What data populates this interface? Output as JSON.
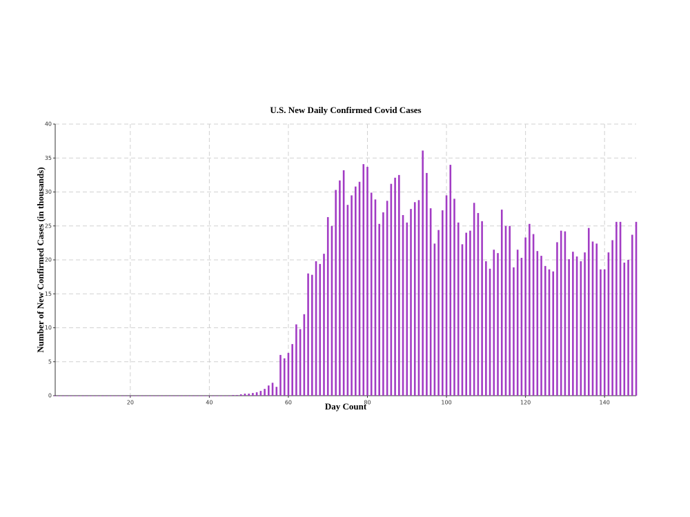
{
  "chart_data": {
    "type": "bar",
    "title": "U.S. New Daily Confirmed Covid Cases",
    "x_label": "Day Count",
    "y_label": "Number of New Confirmed Cases (in thousands)",
    "x": [
      1,
      2,
      3,
      4,
      5,
      6,
      7,
      8,
      9,
      10,
      11,
      12,
      13,
      14,
      15,
      16,
      17,
      18,
      19,
      20,
      21,
      22,
      23,
      24,
      25,
      26,
      27,
      28,
      29,
      30,
      31,
      32,
      33,
      34,
      35,
      36,
      37,
      38,
      39,
      40,
      41,
      42,
      43,
      44,
      45,
      46,
      47,
      48,
      49,
      50,
      51,
      52,
      53,
      54,
      55,
      56,
      57,
      58,
      59,
      60,
      61,
      62,
      63,
      64,
      65,
      66,
      67,
      68,
      69,
      70,
      71,
      72,
      73,
      74,
      75,
      76,
      77,
      78,
      79,
      80,
      81,
      82,
      83,
      84,
      85,
      86,
      87,
      88,
      89,
      90,
      91,
      92,
      93,
      94,
      95,
      96,
      97,
      98,
      99,
      100,
      101,
      102,
      103,
      104,
      105,
      106,
      107,
      108,
      109,
      110,
      111,
      112,
      113,
      114,
      115,
      116,
      117,
      118,
      119,
      120,
      121,
      122,
      123,
      124,
      125,
      126,
      127,
      128,
      129,
      130,
      131,
      132,
      133,
      134,
      135,
      136,
      137,
      138,
      139,
      140,
      141,
      142,
      143,
      144,
      145,
      146,
      147,
      148
    ],
    "values": [
      0,
      0,
      0,
      0,
      0,
      0,
      0,
      0,
      0,
      0,
      0,
      0,
      0,
      0,
      0,
      0,
      0,
      0,
      0,
      0,
      0,
      0,
      0,
      0,
      0,
      0,
      0,
      0,
      0,
      0,
      0,
      0,
      0,
      0,
      0,
      0,
      0,
      0,
      0,
      0,
      0,
      0,
      0,
      0,
      0,
      0.1,
      0.1,
      0.2,
      0.3,
      0.3,
      0.4,
      0.5,
      0.7,
      1.0,
      1.5,
      1.9,
      1.3,
      6.0,
      5.5,
      6.3,
      7.6,
      10.5,
      9.8,
      12.0,
      18.0,
      17.8,
      19.8,
      19.4,
      20.9,
      26.3,
      25.0,
      30.3,
      31.7,
      33.2,
      28.1,
      29.5,
      30.8,
      31.5,
      34.1,
      33.7,
      29.9,
      28.9,
      25.3,
      27.0,
      28.7,
      31.2,
      32.1,
      32.5,
      26.6,
      25.5,
      27.5,
      28.5,
      28.8,
      36.1,
      32.8,
      27.6,
      22.4,
      24.4,
      27.3,
      29.5,
      34.0,
      29.0,
      25.5,
      22.3,
      24.0,
      24.3,
      28.4,
      26.9,
      25.7,
      19.8,
      18.7,
      21.5,
      21.0,
      27.4,
      25.0,
      25.0,
      18.9,
      21.5,
      20.3,
      23.3,
      25.3,
      23.8,
      21.3,
      20.6,
      19.1,
      18.6,
      18.3,
      22.6,
      24.3,
      24.2,
      20.1,
      21.2,
      20.5,
      19.8,
      21.1,
      24.7,
      22.7,
      22.4,
      18.6,
      18.6,
      21.1,
      22.9,
      25.6,
      25.6,
      19.6,
      20.0,
      23.7,
      25.6
    ],
    "color": "#a23cc4",
    "xlim": [
      1,
      148
    ],
    "ylim": [
      0,
      40
    ],
    "xticks": [
      20,
      40,
      60,
      80,
      100,
      120,
      140
    ],
    "yticks": [
      0,
      5,
      10,
      15,
      20,
      25,
      30,
      35,
      40
    ],
    "grid": true
  }
}
